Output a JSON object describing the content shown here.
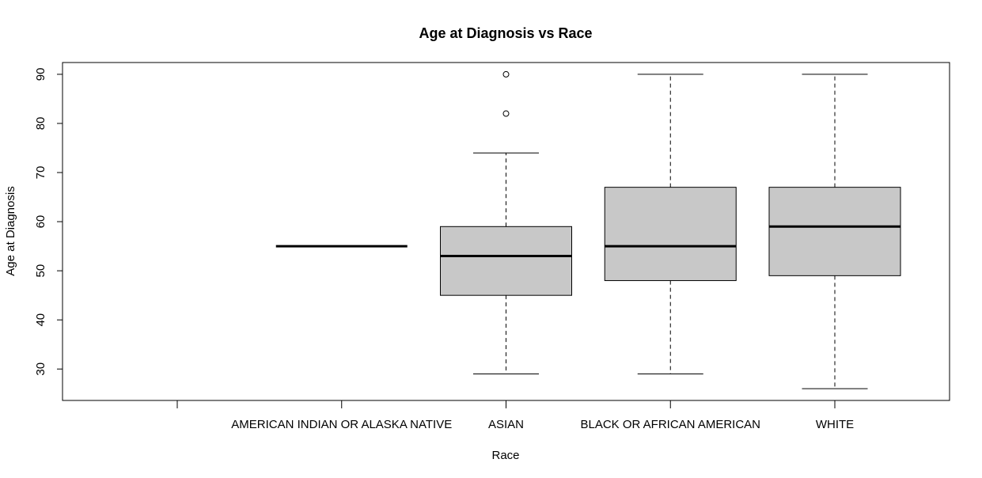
{
  "chart_data": {
    "type": "boxplot",
    "title": "Age at Diagnosis vs Race",
    "xlabel": "Race",
    "ylabel": "Age at Diagnosis",
    "ylim": [
      23.6,
      92.4
    ],
    "yticks": [
      30,
      40,
      50,
      60,
      70,
      80,
      90
    ],
    "categories": [
      "",
      "AMERICAN INDIAN OR ALASKA NATIVE",
      "ASIAN",
      "BLACK OR AFRICAN AMERICAN",
      "WHITE"
    ],
    "boxes": [
      null,
      {
        "lower_whisker": 55,
        "q1": 55,
        "median": 55,
        "q3": 55,
        "upper_whisker": 55,
        "outliers": []
      },
      {
        "lower_whisker": 29,
        "q1": 45,
        "median": 53,
        "q3": 59,
        "upper_whisker": 74,
        "outliers": [
          82,
          90
        ]
      },
      {
        "lower_whisker": 29,
        "q1": 48,
        "median": 55,
        "q3": 67,
        "upper_whisker": 90,
        "outliers": []
      },
      {
        "lower_whisker": 26,
        "q1": 49,
        "median": 59,
        "q3": 67,
        "upper_whisker": 90,
        "outliers": []
      }
    ],
    "box_fill": "#c8c8c8",
    "grid": false,
    "legend": "none"
  }
}
